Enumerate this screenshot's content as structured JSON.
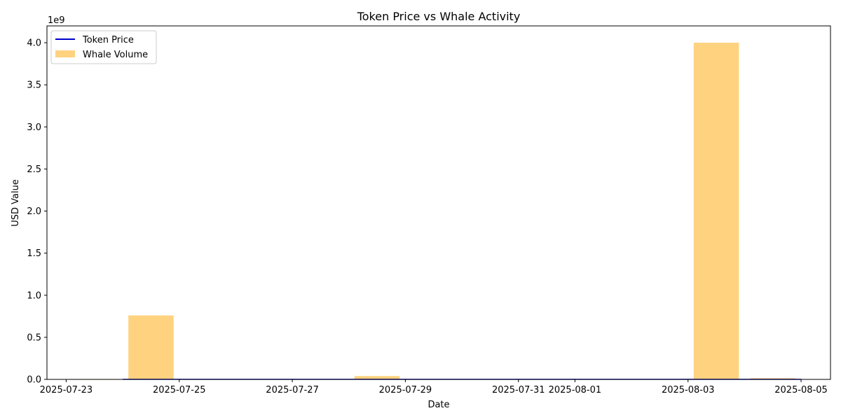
{
  "chart_data": {
    "type": "bar",
    "title": "Token Price vs Whale Activity",
    "xlabel": "Date",
    "ylabel": "USD Value",
    "y_offset_text": "1e9",
    "y_scale_multiplier": 1000000000,
    "ylim": [
      0,
      4.2
    ],
    "xlim": [
      "2025-07-23",
      "2025-08-06"
    ],
    "x_ticks": [
      "2025-07-23",
      "2025-07-25",
      "2025-07-27",
      "2025-07-29",
      "2025-07-31",
      "2025-08-01",
      "2025-08-03",
      "2025-08-05"
    ],
    "y_ticks": [
      "0.0",
      "0.5",
      "1.0",
      "1.5",
      "2.0",
      "2.5",
      "3.0",
      "3.5",
      "4.0"
    ],
    "grid": false,
    "legend_position": "upper-left",
    "series": [
      {
        "name": "Token Price",
        "kind": "line",
        "color": "#0000cc",
        "points": [
          {
            "date": "2025-07-24",
            "value": 0.001
          },
          {
            "date": "2025-07-25",
            "value": 0.001
          },
          {
            "date": "2025-07-26",
            "value": 0.001
          },
          {
            "date": "2025-07-27",
            "value": 0.001
          },
          {
            "date": "2025-07-28",
            "value": 0.001
          },
          {
            "date": "2025-07-29",
            "value": 0.001
          },
          {
            "date": "2025-07-30",
            "value": 0.001
          },
          {
            "date": "2025-07-31",
            "value": 0.001
          },
          {
            "date": "2025-08-01",
            "value": 0.001
          },
          {
            "date": "2025-08-02",
            "value": 0.001
          },
          {
            "date": "2025-08-03",
            "value": 0.001
          },
          {
            "date": "2025-08-04",
            "value": 0.001
          },
          {
            "date": "2025-08-05",
            "value": 0.001
          }
        ]
      },
      {
        "name": "Whale Volume",
        "kind": "bar",
        "color": "#ffa500",
        "opacity": 0.5,
        "points": [
          {
            "date": "2025-07-23",
            "value": 0.005
          },
          {
            "date": "2025-07-24",
            "value": 0.76
          },
          {
            "date": "2025-07-28",
            "value": 0.04
          },
          {
            "date": "2025-08-03",
            "value": 4.0
          },
          {
            "date": "2025-08-04",
            "value": 0.015
          }
        ]
      }
    ]
  }
}
